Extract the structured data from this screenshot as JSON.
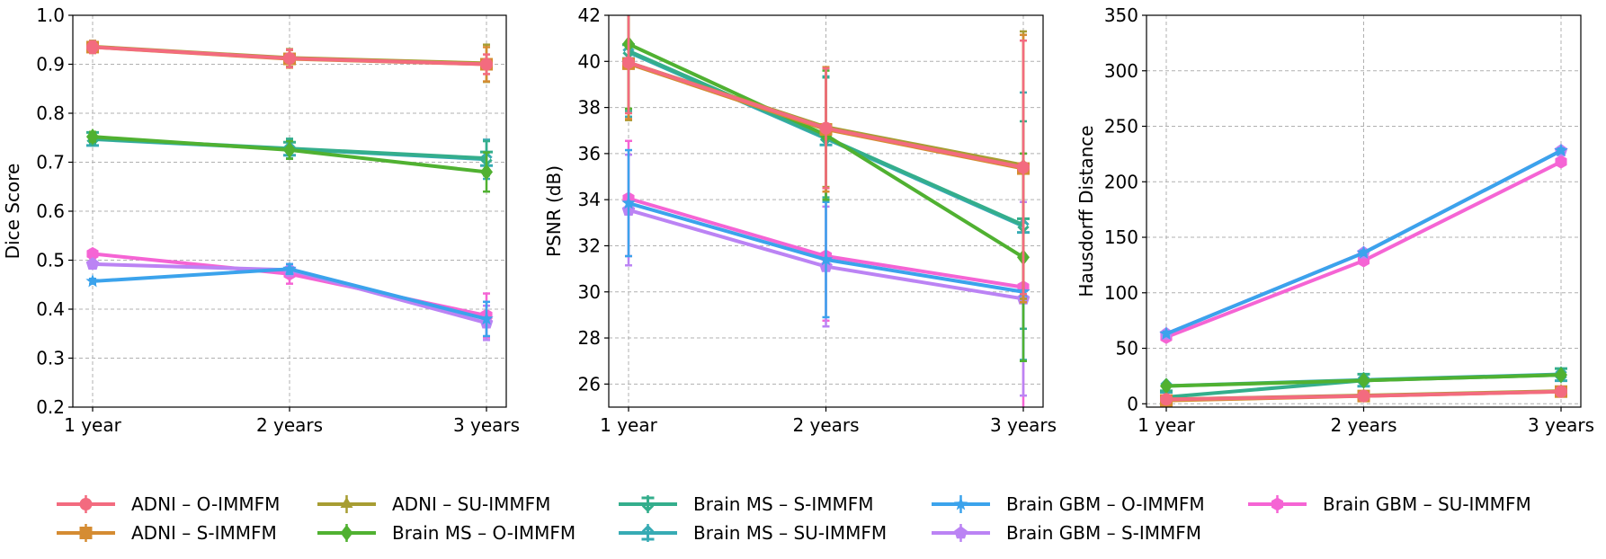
{
  "chart_data": [
    {
      "type": "line",
      "id": "dice",
      "ylabel": "Dice Score",
      "categories": [
        "1 year",
        "2 years",
        "3 years"
      ],
      "ylim": [
        0.2,
        1.0
      ],
      "yticks": [
        0.2,
        0.3,
        0.4,
        0.5,
        0.6,
        0.7,
        0.8,
        0.9,
        1.0
      ],
      "ytick_labels": [
        "0.2",
        "0.3",
        "0.4",
        "0.5",
        "0.6",
        "0.7",
        "0.8",
        "0.9",
        "1.0"
      ],
      "grid": true,
      "series": [
        {
          "name": "ADNI – O-IMMFM",
          "values": [
            0.935,
            0.912,
            0.9
          ],
          "err": [
            0.012,
            0.018,
            0.02
          ]
        },
        {
          "name": "ADNI – S-IMMFM",
          "values": [
            0.935,
            0.911,
            0.9
          ],
          "err": [
            0.012,
            0.018,
            0.035
          ]
        },
        {
          "name": "ADNI – SU-IMMFM",
          "values": [
            0.936,
            0.913,
            0.902
          ],
          "err": [
            0.012,
            0.018,
            0.038
          ]
        },
        {
          "name": "Brain MS – O-IMMFM",
          "values": [
            0.752,
            0.725,
            0.68
          ],
          "err": [
            0.01,
            0.018,
            0.04
          ]
        },
        {
          "name": "Brain MS – S-IMMFM",
          "values": [
            0.748,
            0.728,
            0.708
          ],
          "err": [
            0.01,
            0.02,
            0.035
          ]
        },
        {
          "name": "Brain MS – SU-IMMFM",
          "values": [
            0.747,
            0.727,
            0.706
          ],
          "err": [
            0.01,
            0.02,
            0.04
          ]
        },
        {
          "name": "Brain GBM – O-IMMFM",
          "values": [
            0.457,
            0.482,
            0.38
          ],
          "err": [
            0.005,
            0.01,
            0.035
          ]
        },
        {
          "name": "Brain GBM – S-IMMFM",
          "values": [
            0.492,
            0.48,
            0.372
          ],
          "err": [
            0.008,
            0.012,
            0.035
          ]
        },
        {
          "name": "Brain GBM – SU-IMMFM",
          "values": [
            0.513,
            0.472,
            0.387
          ],
          "err": [
            0.008,
            0.02,
            0.045
          ]
        }
      ]
    },
    {
      "type": "line",
      "id": "psnr",
      "ylabel": "PSNR (dB)",
      "categories": [
        "1 year",
        "2 years",
        "3 years"
      ],
      "ylim": [
        25,
        42
      ],
      "yticks": [
        26,
        28,
        30,
        32,
        34,
        36,
        38,
        40,
        42
      ],
      "ytick_labels": [
        "26",
        "28",
        "30",
        "32",
        "34",
        "36",
        "38",
        "40",
        "42"
      ],
      "grid": true,
      "series": [
        {
          "name": "ADNI – O-IMMFM",
          "values": [
            39.95,
            37.1,
            35.4
          ],
          "err": [
            2.2,
            2.6,
            5.5
          ]
        },
        {
          "name": "ADNI – S-IMMFM",
          "values": [
            39.9,
            37.05,
            35.35
          ],
          "err": [
            2.4,
            2.7,
            5.8
          ]
        },
        {
          "name": "ADNI – SU-IMMFM",
          "values": [
            39.95,
            37.15,
            35.5
          ],
          "err": [
            2.5,
            2.6,
            5.8
          ]
        },
        {
          "name": "Brain MS – O-IMMFM",
          "values": [
            40.75,
            36.8,
            31.5
          ],
          "err": [
            2.8,
            2.8,
            4.5
          ]
        },
        {
          "name": "Brain MS – S-IMMFM",
          "values": [
            40.45,
            36.7,
            32.9
          ],
          "err": [
            2.6,
            2.6,
            4.5
          ]
        },
        {
          "name": "Brain MS – SU-IMMFM",
          "values": [
            40.4,
            36.65,
            32.85
          ],
          "err": [
            2.8,
            2.7,
            5.8
          ]
        },
        {
          "name": "Brain GBM – O-IMMFM",
          "values": [
            33.85,
            31.4,
            30.0
          ],
          "err": [
            2.3,
            2.5,
            3.0
          ]
        },
        {
          "name": "Brain GBM – S-IMMFM",
          "values": [
            33.55,
            31.1,
            29.7
          ],
          "err": [
            2.4,
            2.6,
            4.2
          ]
        },
        {
          "name": "Brain GBM – SU-IMMFM",
          "values": [
            34.05,
            31.55,
            30.2
          ],
          "err": [
            2.5,
            2.8,
            5.8
          ]
        }
      ]
    },
    {
      "type": "line",
      "id": "hausdorff",
      "ylabel": "Hausdorff Distance",
      "categories": [
        "1 year",
        "2 years",
        "3 years"
      ],
      "ylim": [
        -3,
        350
      ],
      "yticks": [
        0,
        50,
        100,
        150,
        200,
        250,
        300,
        350
      ],
      "ytick_labels": [
        "0",
        "50",
        "100",
        "150",
        "200",
        "250",
        "300",
        "350"
      ],
      "grid": true,
      "series": [
        {
          "name": "ADNI – O-IMMFM",
          "values": [
            4,
            7,
            11
          ],
          "err": [
            0.8,
            1,
            1
          ]
        },
        {
          "name": "ADNI – S-IMMFM",
          "values": [
            3,
            7,
            11
          ],
          "err": [
            0.8,
            1,
            1
          ]
        },
        {
          "name": "ADNI – SU-IMMFM",
          "values": [
            4,
            7.5,
            11.5
          ],
          "err": [
            0.8,
            1,
            1
          ]
        },
        {
          "name": "Brain MS – O-IMMFM",
          "values": [
            16,
            21,
            26
          ],
          "err": [
            1,
            1,
            1
          ]
        },
        {
          "name": "Brain MS – S-IMMFM",
          "values": [
            6,
            21,
            26
          ],
          "err": [
            1,
            1,
            1
          ]
        },
        {
          "name": "Brain MS – SU-IMMFM",
          "values": [
            16,
            21.5,
            26.5
          ],
          "err": [
            1,
            1,
            1
          ]
        },
        {
          "name": "Brain GBM – O-IMMFM",
          "values": [
            63,
            136,
            228
          ],
          "err": [
            2,
            2,
            2
          ]
        },
        {
          "name": "Brain GBM – S-IMMFM",
          "values": [
            63,
            136,
            228
          ],
          "err": [
            2,
            2,
            2
          ]
        },
        {
          "name": "Brain GBM – SU-IMMFM",
          "values": [
            60,
            129,
            218
          ],
          "err": [
            2,
            2,
            2
          ]
        }
      ]
    }
  ],
  "legend": {
    "location": "bottom",
    "items": [
      {
        "label": "ADNI – O-IMMFM",
        "color": "#f36b7f",
        "marker": "circle"
      },
      {
        "label": "ADNI – S-IMMFM",
        "color": "#d58c32",
        "marker": "square"
      },
      {
        "label": "ADNI – SU-IMMFM",
        "color": "#a79d32",
        "marker": "triangle"
      },
      {
        "label": "Brain MS – O-IMMFM",
        "color": "#50b131",
        "marker": "diamond"
      },
      {
        "label": "Brain MS – S-IMMFM",
        "color": "#34ae8c",
        "marker": "tri-down"
      },
      {
        "label": "Brain MS – SU-IMMFM",
        "color": "#37abb4",
        "marker": "tri-up"
      },
      {
        "label": "Brain GBM – O-IMMFM",
        "color": "#3ba3ec",
        "marker": "star"
      },
      {
        "label": "Brain GBM – S-IMMFM",
        "color": "#bb83f4",
        "marker": "pentagon"
      },
      {
        "label": "Brain GBM – SU-IMMFM",
        "color": "#f564d4",
        "marker": "hexagon"
      }
    ]
  }
}
